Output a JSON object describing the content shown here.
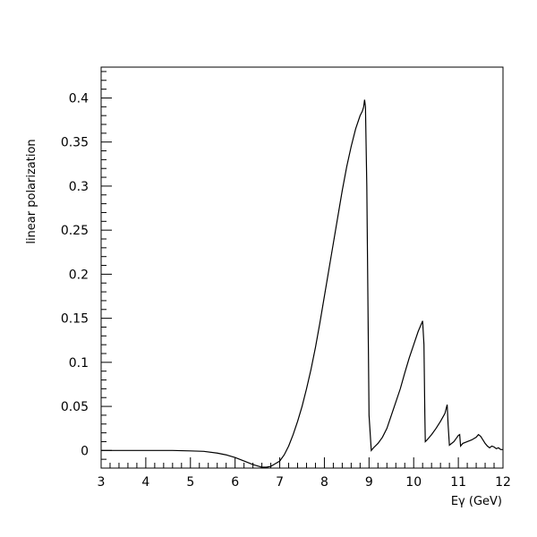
{
  "chart_data": {
    "type": "line",
    "title": "",
    "xlabel": "Eγ (GeV)",
    "ylabel": "linear polarization",
    "xlim": [
      3,
      12
    ],
    "ylim": [
      -0.02,
      0.435
    ],
    "x_ticks": [
      3,
      4,
      5,
      6,
      7,
      8,
      9,
      10,
      11,
      12
    ],
    "x_tick_labels": [
      "3",
      "4",
      "5",
      "6",
      "7",
      "8",
      "9",
      "10",
      "11",
      "12"
    ],
    "y_ticks": [
      0,
      0.05,
      0.1,
      0.15,
      0.2,
      0.25,
      0.3,
      0.35,
      0.4
    ],
    "y_tick_labels": [
      "0",
      "0.05",
      "0.1",
      "0.15",
      "0.2",
      "0.25",
      "0.3",
      "0.35",
      "0.4"
    ],
    "grid": false,
    "legend": "none",
    "line_color": "#000000",
    "series": [
      {
        "x": [
          3.0,
          4.0,
          4.6,
          5.0,
          5.3,
          5.6,
          5.8,
          6.0,
          6.2,
          6.4,
          6.6,
          6.7,
          6.8,
          6.9,
          7.0,
          7.1,
          7.2,
          7.3,
          7.4,
          7.5,
          7.6,
          7.7,
          7.8,
          7.9,
          8.0,
          8.1,
          8.2,
          8.3,
          8.4,
          8.5,
          8.6,
          8.7,
          8.8,
          8.85,
          8.88,
          8.9,
          8.92,
          8.95,
          9.0,
          9.05,
          9.1,
          9.2,
          9.3,
          9.4,
          9.5,
          9.6,
          9.7,
          9.8,
          9.9,
          10.0,
          10.1,
          10.2,
          10.23,
          10.25,
          10.26,
          10.3,
          10.4,
          10.5,
          10.6,
          10.7,
          10.75,
          10.77,
          10.8,
          10.9,
          11.0,
          11.03,
          11.05,
          11.1,
          11.2,
          11.3,
          11.4,
          11.45,
          11.5,
          11.55,
          11.6,
          11.65,
          11.7,
          11.75,
          11.8,
          11.85,
          11.9,
          11.95,
          12.0
        ],
        "y": [
          0.0,
          0.0,
          0.0,
          -0.0005,
          -0.001,
          -0.003,
          -0.005,
          -0.008,
          -0.012,
          -0.016,
          -0.019,
          -0.019,
          -0.018,
          -0.015,
          -0.012,
          -0.005,
          0.005,
          0.018,
          0.033,
          0.05,
          0.07,
          0.092,
          0.117,
          0.145,
          0.175,
          0.205,
          0.235,
          0.265,
          0.295,
          0.322,
          0.345,
          0.365,
          0.38,
          0.385,
          0.39,
          0.398,
          0.39,
          0.3,
          0.04,
          0.0,
          0.003,
          0.008,
          0.015,
          0.025,
          0.04,
          0.055,
          0.07,
          0.088,
          0.105,
          0.12,
          0.135,
          0.147,
          0.12,
          0.04,
          0.01,
          0.012,
          0.018,
          0.025,
          0.033,
          0.042,
          0.052,
          0.03,
          0.006,
          0.01,
          0.017,
          0.018,
          0.005,
          0.008,
          0.01,
          0.012,
          0.015,
          0.018,
          0.016,
          0.012,
          0.008,
          0.005,
          0.003,
          0.005,
          0.004,
          0.002,
          0.003,
          0.001,
          0.001
        ]
      }
    ]
  }
}
